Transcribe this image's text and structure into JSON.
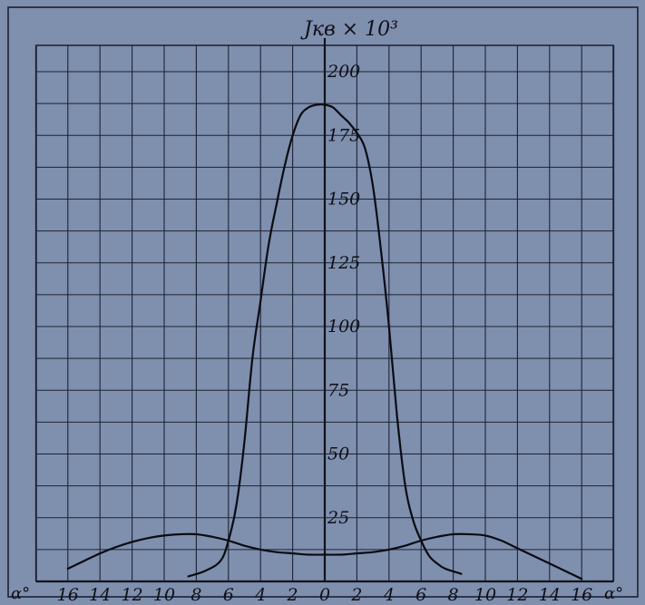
{
  "chart_data": {
    "type": "line",
    "title": "",
    "ylabel": "Jкв × 10³",
    "xlabel_left": "α°",
    "xlabel_right": "α°",
    "x_tick_labels": [
      "16",
      "14",
      "12",
      "10",
      "8",
      "6",
      "4",
      "2",
      "0",
      "2",
      "4",
      "6",
      "8",
      "10",
      "12",
      "14",
      "16"
    ],
    "x_tick_values": [
      -16,
      -14,
      -12,
      -10,
      -8,
      -6,
      -4,
      -2,
      0,
      2,
      4,
      6,
      8,
      10,
      12,
      14,
      16
    ],
    "y_tick_labels": [
      "25",
      "50",
      "75",
      "100",
      "125",
      "150",
      "175",
      "200"
    ],
    "y_tick_values": [
      25,
      50,
      75,
      100,
      125,
      150,
      175,
      200
    ],
    "xlim": [
      -18,
      18
    ],
    "ylim": [
      0,
      210
    ],
    "grid": true,
    "series": [
      {
        "x": [
          -8.5,
          -7.5,
          -6.5,
          -6,
          -5.5,
          -5,
          -4.5,
          -4,
          -3.5,
          -3,
          -2.5,
          -2,
          -1.5,
          -1,
          -0.5,
          0,
          0.5,
          1,
          1.5,
          2,
          2.5,
          3,
          3.5,
          4,
          4.5,
          5,
          5.5,
          6,
          6.5,
          7,
          7.5,
          8.5
        ],
        "y": [
          2,
          4,
          8,
          16,
          30,
          55,
          88,
          110,
          132,
          148,
          163,
          175,
          183,
          186,
          187,
          187,
          186,
          183,
          180,
          176,
          170,
          155,
          130,
          100,
          65,
          38,
          24,
          16,
          10,
          7,
          5,
          3
        ]
      },
      {
        "x": [
          -16,
          -15,
          -14,
          -13,
          -12,
          -11,
          -10,
          -9,
          -8,
          -7,
          -6,
          -5,
          -4,
          -3,
          -2,
          -1,
          0,
          1,
          2,
          3,
          4,
          5,
          6,
          7,
          8,
          9,
          10,
          11,
          12,
          13,
          14,
          15,
          16
        ],
        "y": [
          5,
          8,
          11,
          13.5,
          15.5,
          17,
          18,
          18.5,
          18.5,
          17.5,
          16,
          14,
          12.5,
          11.5,
          11,
          10.5,
          10.5,
          10.5,
          11,
          11.5,
          12.5,
          14,
          16,
          17.5,
          18.5,
          18.5,
          18,
          16,
          13,
          10,
          7,
          4,
          1
        ]
      }
    ]
  }
}
